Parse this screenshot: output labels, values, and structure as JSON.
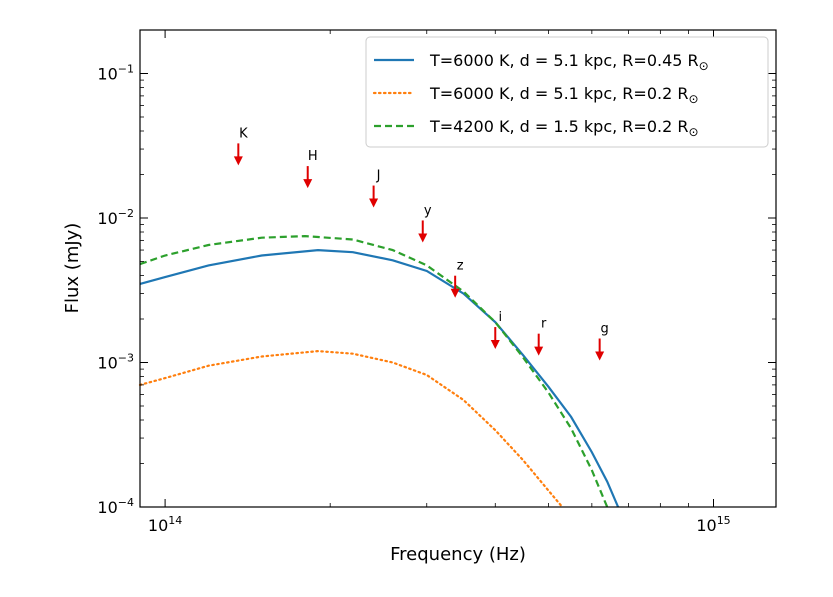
{
  "chart_data": {
    "type": "line",
    "xlabel": "Frequency (Hz)",
    "ylabel": "Flux (mJy)",
    "x_scale": "log",
    "y_scale": "log",
    "xlim": [
      90000000000000.0,
      1300000000000000.0
    ],
    "ylim": [
      0.0001,
      0.2
    ],
    "x_ticks": [
      {
        "value": 100000000000000.0,
        "label": "10",
        "exp": "14"
      },
      {
        "value": 1000000000000000.0,
        "label": "10",
        "exp": "15"
      }
    ],
    "y_ticks": [
      {
        "value": 0.0001,
        "label": "10",
        "exp": "−4"
      },
      {
        "value": 0.001,
        "label": "10",
        "exp": "−3"
      },
      {
        "value": 0.01,
        "label": "10",
        "exp": "−2"
      },
      {
        "value": 0.1,
        "label": "10",
        "exp": "−1"
      }
    ],
    "grid": false,
    "legend_position": "top-right",
    "series": [
      {
        "name": "T=6000 K, d = 5.1 kpc, R=0.45 R",
        "name_subscript": "⊙",
        "color": "#1f77b4",
        "style": "solid",
        "x": [
          90000000000000.0,
          100000000000000.0,
          120000000000000.0,
          150000000000000.0,
          190000000000000.0,
          220000000000000.0,
          260000000000000.0,
          300000000000000.0,
          350000000000000.0,
          400000000000000.0,
          450000000000000.0,
          500000000000000.0,
          550000000000000.0,
          600000000000000.0,
          640000000000000.0,
          670000000000000.0
        ],
        "y": [
          0.0035,
          0.0039,
          0.0047,
          0.0055,
          0.006,
          0.0058,
          0.0051,
          0.0043,
          0.003,
          0.0019,
          0.00112,
          0.00068,
          0.00042,
          0.00024,
          0.00015,
          0.0001
        ]
      },
      {
        "name": "T=6000 K, d = 5.1 kpc, R=0.2 R",
        "name_subscript": "⊙",
        "color": "#ff7f0e",
        "style": "dotted",
        "x": [
          90000000000000.0,
          100000000000000.0,
          120000000000000.0,
          150000000000000.0,
          190000000000000.0,
          220000000000000.0,
          260000000000000.0,
          300000000000000.0,
          350000000000000.0,
          400000000000000.0,
          450000000000000.0,
          500000000000000.0,
          530000000000000.0
        ],
        "y": [
          0.0007,
          0.00078,
          0.00095,
          0.0011,
          0.0012,
          0.00115,
          0.001,
          0.00082,
          0.00055,
          0.00034,
          0.00021,
          0.00013,
          0.0001
        ]
      },
      {
        "name": "T=4200 K, d = 1.5 kpc, R=0.2 R",
        "name_subscript": "⊙",
        "color": "#2ca02c",
        "style": "dashed",
        "x": [
          90000000000000.0,
          100000000000000.0,
          120000000000000.0,
          150000000000000.0,
          180000000000000.0,
          220000000000000.0,
          260000000000000.0,
          300000000000000.0,
          350000000000000.0,
          400000000000000.0,
          450000000000000.0,
          500000000000000.0,
          550000000000000.0,
          600000000000000.0,
          640000000000000.0
        ],
        "y": [
          0.0048,
          0.0055,
          0.0065,
          0.0073,
          0.0075,
          0.0071,
          0.006,
          0.0047,
          0.0031,
          0.0019,
          0.00108,
          0.00062,
          0.00035,
          0.00018,
          0.0001
        ]
      }
    ],
    "upper_limits": {
      "color": "#e00000",
      "points": [
        {
          "band": "K",
          "x": 136000000000000.0,
          "y": 0.028
        },
        {
          "band": "H",
          "x": 182000000000000.0,
          "y": 0.0195
        },
        {
          "band": "J",
          "x": 240000000000000.0,
          "y": 0.0143
        },
        {
          "band": "y",
          "x": 295000000000000.0,
          "y": 0.0082
        },
        {
          "band": "z",
          "x": 338000000000000.0,
          "y": 0.0034
        },
        {
          "band": "i",
          "x": 400000000000000.0,
          "y": 0.0015
        },
        {
          "band": "r",
          "x": 480000000000000.0,
          "y": 0.00135
        },
        {
          "band": "g",
          "x": 620000000000000.0,
          "y": 0.00125
        }
      ]
    }
  }
}
